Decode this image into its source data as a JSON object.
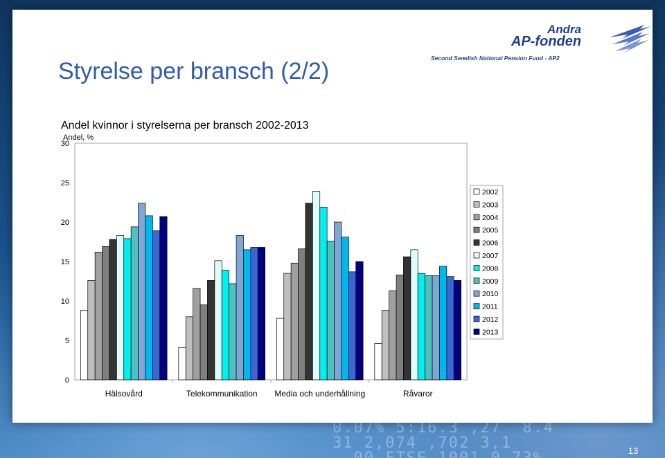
{
  "slide": {
    "title": "Styrelse per bransch (2/2)",
    "page_number": "13"
  },
  "logo": {
    "line1": "Andra",
    "line2": "AP-fonden",
    "line3": "Second Swedish National Pension Fund - AP2"
  },
  "chart_data": {
    "type": "bar",
    "title": "Andel kvinnor i styrelserna per bransch 2002-2013",
    "ylabel": "Andel, %",
    "xlabel": "",
    "ylim": [
      0,
      30
    ],
    "yticks": [
      "0",
      "5",
      "10",
      "15",
      "20",
      "25",
      "30"
    ],
    "categories": [
      "Hälsovård",
      "Telekommunikation",
      "Media och underhållning",
      "Råvaror"
    ],
    "grid": false,
    "legend_position": "right",
    "series": [
      {
        "name": "2002",
        "color": "#ffffff",
        "values": [
          8.8,
          4.1,
          7.8,
          4.6
        ]
      },
      {
        "name": "2003",
        "color": "#bfbfbf",
        "values": [
          12.6,
          8.0,
          13.5,
          8.8
        ]
      },
      {
        "name": "2004",
        "color": "#a0a0a0",
        "values": [
          16.2,
          11.6,
          14.8,
          11.3
        ]
      },
      {
        "name": "2005",
        "color": "#7f7f7f",
        "values": [
          16.9,
          9.5,
          16.6,
          13.3
        ]
      },
      {
        "name": "2006",
        "color": "#333333",
        "values": [
          17.8,
          12.6,
          22.4,
          15.6
        ]
      },
      {
        "name": "2007",
        "color": "#dffbfb",
        "values": [
          18.3,
          15.1,
          23.9,
          16.5
        ]
      },
      {
        "name": "2008",
        "color": "#00f0f0",
        "values": [
          17.9,
          13.9,
          21.9,
          13.5
        ]
      },
      {
        "name": "2009",
        "color": "#4fc0bf",
        "values": [
          19.4,
          12.2,
          17.6,
          13.2
        ]
      },
      {
        "name": "2010",
        "color": "#7ea7d5",
        "values": [
          22.4,
          18.3,
          20.0,
          13.2
        ]
      },
      {
        "name": "2011",
        "color": "#00b8ee",
        "values": [
          20.8,
          16.5,
          18.1,
          14.4
        ]
      },
      {
        "name": "2012",
        "color": "#3a67d6",
        "values": [
          18.9,
          16.8,
          13.7,
          13.1
        ]
      },
      {
        "name": "2013",
        "color": "#000080",
        "values": [
          20.7,
          16.8,
          15.0,
          12.6
        ]
      }
    ]
  }
}
